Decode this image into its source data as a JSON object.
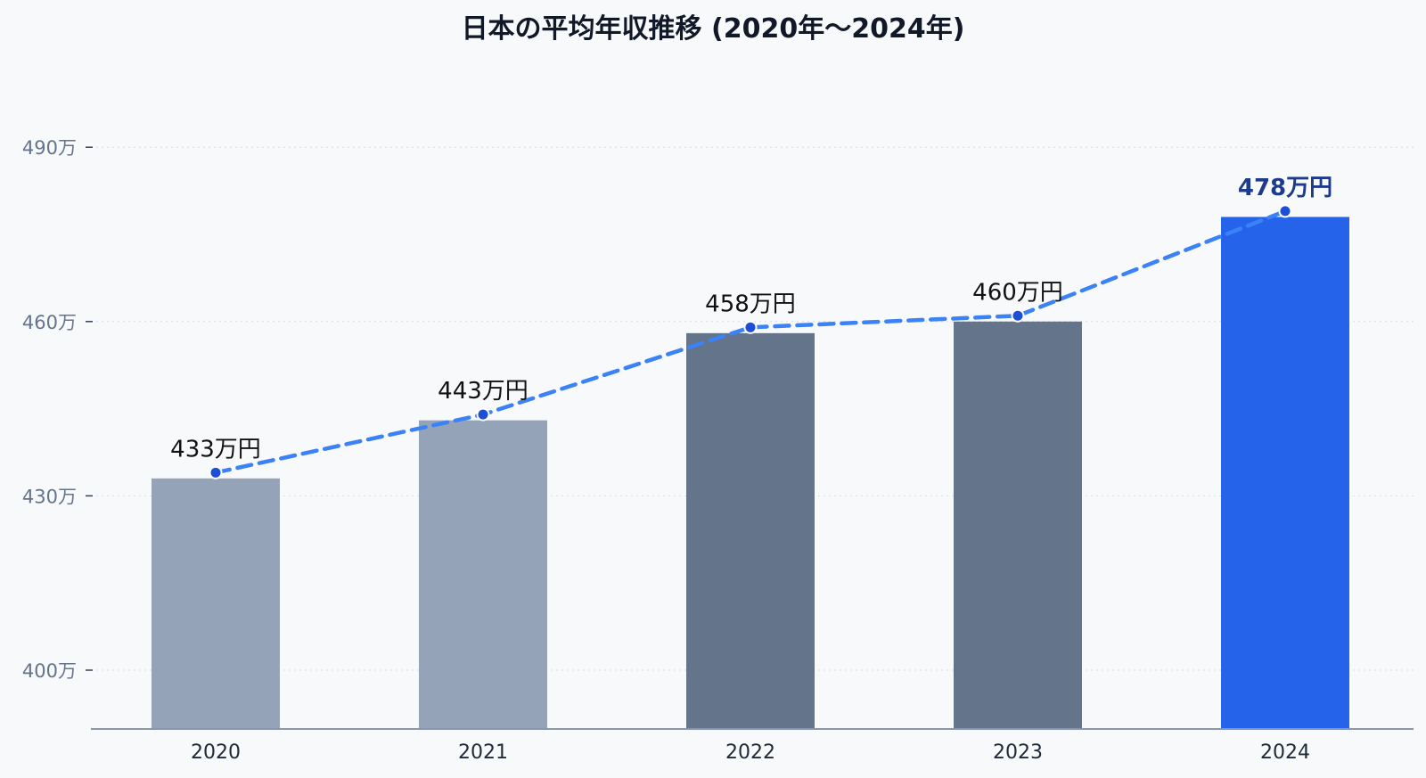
{
  "chart_data": {
    "type": "bar",
    "title": "日本の平均年収推移 (2020年〜2024年)",
    "xlabel": "",
    "ylabel": "",
    "categories": [
      "2020",
      "2021",
      "2022",
      "2023",
      "2024"
    ],
    "values": [
      433,
      443,
      458,
      460,
      478
    ],
    "data_labels": [
      "433万円",
      "443万円",
      "458万円",
      "460万円",
      "478万円"
    ],
    "trend_line": [
      434,
      444,
      459,
      461,
      479
    ],
    "y_ticks": [
      {
        "value": 400,
        "label": "400万"
      },
      {
        "value": 430,
        "label": "430万"
      },
      {
        "value": 460,
        "label": "460万"
      },
      {
        "value": 490,
        "label": "490万"
      }
    ],
    "ylim_display": "broken axis: 390–400 compressed, 400–490 linear",
    "grid": true,
    "bar_colors": [
      "#94a3b8",
      "#94a3b8",
      "#64748b",
      "#64748b",
      "#2563eb"
    ],
    "trend_color": "#3b82f6",
    "point_color": "#1d4ed8",
    "highlight_label_color": "#1e3a8a"
  }
}
